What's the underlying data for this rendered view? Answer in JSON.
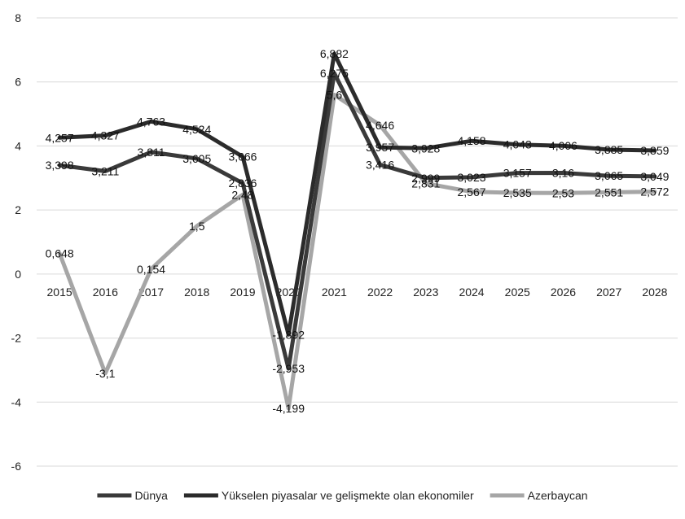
{
  "chart_data": {
    "type": "line",
    "categories": [
      "2015",
      "2016",
      "2017",
      "2018",
      "2019",
      "2020",
      "2021",
      "2022",
      "2023",
      "2024",
      "2025",
      "2026",
      "2027",
      "2028"
    ],
    "ylim": [
      -6,
      8
    ],
    "yticks": [
      -6,
      -4,
      -2,
      0,
      2,
      4,
      6,
      8
    ],
    "ytick_labels": [
      "-6",
      "-4",
      "-2",
      "0",
      "2",
      "4",
      "6",
      "8"
    ],
    "grid": true,
    "legend_position": "bottom",
    "series": [
      {
        "name": "Dünya",
        "color": "#3a3a3a",
        "values": [
          3.398,
          3.211,
          3.811,
          3.605,
          2.836,
          -2.953,
          6.275,
          3.416,
          2.999,
          3.023,
          3.157,
          3.16,
          3.065,
          3.049
        ],
        "labels": [
          "3,398",
          "3,211",
          "3,811",
          "3,605",
          "2,836",
          "-2,953",
          "6,275",
          "3,416",
          "2,999",
          "3,023",
          "3,157",
          "3,16",
          "3,065",
          "3,049"
        ]
      },
      {
        "name": "Yükselen piyasalar ve gelişmekte olan ekonomiler",
        "color": "#2b2b2b",
        "values": [
          4.257,
          4.327,
          4.763,
          4.524,
          3.666,
          -1.892,
          6.882,
          3.957,
          3.928,
          4.158,
          4.043,
          4.006,
          3.885,
          3.859
        ],
        "labels": [
          "4,257",
          "4,327",
          "4,763",
          "4,524",
          "3,666",
          "-1,892",
          "6,882",
          "3,957",
          "3,928",
          "4,158",
          "4,043",
          "4,006",
          "3,885",
          "3,859"
        ]
      },
      {
        "name": "Azerbaycan",
        "color": "#a6a6a6",
        "values": [
          0.648,
          -3.1,
          0.154,
          1.5,
          2.48,
          -4.199,
          5.6,
          4.646,
          2.831,
          2.567,
          2.535,
          2.53,
          2.551,
          2.572
        ],
        "labels": [
          "0,648",
          "-3,1",
          "0,154",
          "1,5",
          "2,48",
          "-4,199",
          "5,6",
          "4,646",
          "2,831",
          "2,567",
          "2,535",
          "2,53",
          "2,551",
          "2,572"
        ]
      }
    ]
  }
}
